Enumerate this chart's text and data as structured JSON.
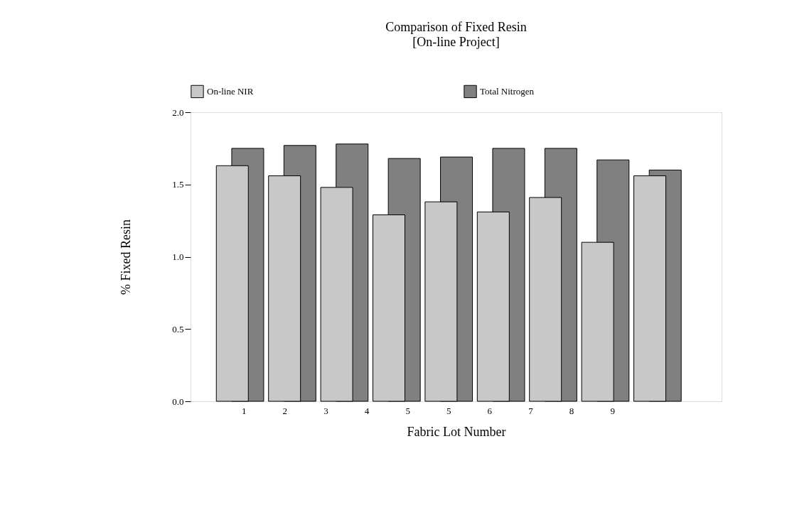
{
  "chart_data": {
    "type": "bar",
    "title": "Comparison of Fixed Resin",
    "subtitle": "[On-line Project]",
    "xlabel": "Fabric Lot Number",
    "ylabel": "% Fixed Resin",
    "categories": [
      null,
      null,
      null,
      null,
      null,
      null,
      null,
      null,
      null
    ],
    "series": [
      {
        "name": "On-line NIR",
        "color": "#c8c8c8",
        "values": [
          1.63,
          1.56,
          1.48,
          1.29,
          1.38,
          1.31,
          1.41,
          1.1,
          1.56
        ]
      },
      {
        "name": "Total Nitrogen",
        "color": "#808080",
        "values": [
          1.75,
          1.77,
          1.78,
          1.68,
          1.69,
          1.75,
          1.75,
          1.67,
          1.6
        ]
      }
    ],
    "annotations": [
      "1",
      "2",
      "3",
      "4",
      "5",
      "5",
      "6",
      "7",
      "8",
      "9"
    ],
    "ylim": [
      0,
      2
    ],
    "yticks": [
      {
        "value": 0,
        "label": "0.0"
      },
      0.5,
      {
        "value": 1,
        "label": "1.0"
      },
      1.5,
      {
        "value": 2,
        "label": "2.0"
      }
    ],
    "grid": false,
    "legend": "top"
  }
}
